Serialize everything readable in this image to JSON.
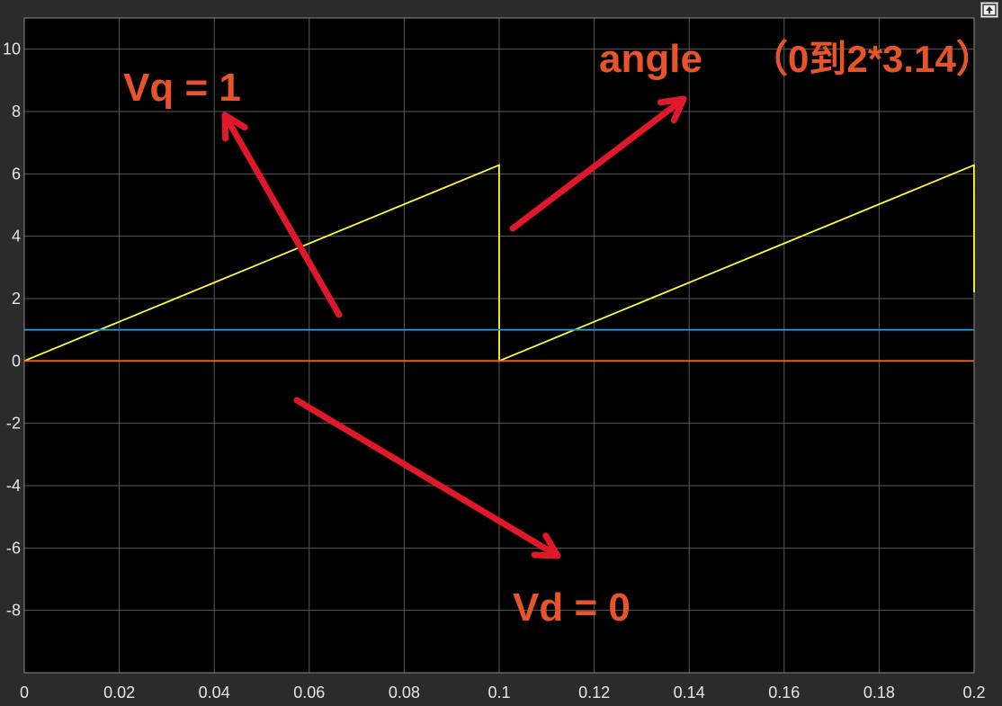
{
  "toolbar": {
    "restore_icon": "restore-axes-icon"
  },
  "chart_data": {
    "type": "line",
    "title": "",
    "xlabel": "",
    "ylabel": "",
    "xlim": [
      0,
      0.2
    ],
    "ylim": [
      -10,
      11
    ],
    "grid": true,
    "x_ticks": [
      0,
      0.02,
      0.04,
      0.06,
      0.08,
      0.1,
      0.12,
      0.14,
      0.16,
      0.18,
      0.2
    ],
    "x_tick_labels": [
      "0",
      "0.02",
      "0.04",
      "0.06",
      "0.08",
      "0.1",
      "0.12",
      "0.14",
      "0.16",
      "0.18",
      "0.2"
    ],
    "y_ticks": [
      -8,
      -6,
      -4,
      -2,
      0,
      2,
      4,
      6,
      8,
      10
    ],
    "y_tick_labels": [
      "-8",
      "-6",
      "-4",
      "-2",
      "0",
      "2",
      "4",
      "6",
      "8",
      "10"
    ],
    "background": "#000000",
    "series": [
      {
        "color": "#ffff33",
        "x": [
          0,
          0.09998,
          0.1,
          0.19998,
          0.2
        ],
        "y": [
          0,
          6.28,
          0,
          6.28,
          2.2
        ]
      },
      {
        "color": "#1f9ae0",
        "x": [
          0,
          0.2
        ],
        "y": [
          1,
          1
        ]
      },
      {
        "color": "#e8682a",
        "x": [
          0,
          0.2
        ],
        "y": [
          0,
          0
        ]
      }
    ],
    "annotations": [
      {
        "text": "Vq = 1",
        "color": "#e8542a"
      },
      {
        "text": "angle",
        "color": "#e8542a"
      },
      {
        "text": "（0到2*3.14）",
        "color": "#e8542a"
      },
      {
        "text": "Vd = 0",
        "color": "#e8542a"
      }
    ]
  }
}
